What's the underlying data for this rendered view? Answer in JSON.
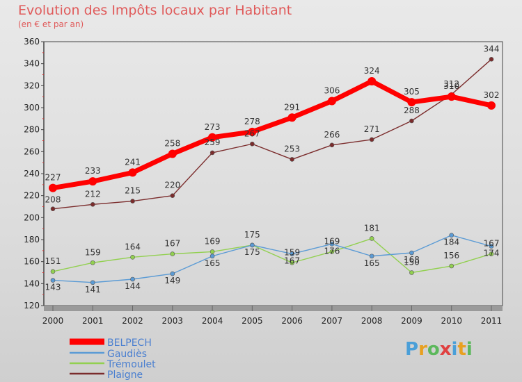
{
  "chart_data": {
    "type": "line",
    "title": "Evolution des Impôts locaux par Habitant",
    "subtitle": "(en € et par an)",
    "x": [
      "2000",
      "2001",
      "2002",
      "2003",
      "2004",
      "2005",
      "2006",
      "2007",
      "2008",
      "2009",
      "2010",
      "2011"
    ],
    "ylim": [
      120,
      360
    ],
    "yticks": [
      120,
      140,
      160,
      180,
      200,
      220,
      240,
      260,
      280,
      300,
      320,
      340,
      360
    ],
    "grid": false,
    "legend_position": "bottom-left",
    "series": [
      {
        "name": "BELPECH",
        "color": "#ff0000",
        "values": [
          227,
          233,
          241,
          258,
          273,
          278,
          291,
          306,
          324,
          305,
          310,
          302
        ]
      },
      {
        "name": "Gaudiès",
        "color": "#5b9bd5",
        "values": [
          143,
          141,
          144,
          149,
          165,
          175,
          167,
          176,
          165,
          168,
          184,
          174
        ]
      },
      {
        "name": "Trémoulet",
        "color": "#92d050",
        "values": [
          151,
          159,
          164,
          167,
          169,
          175,
          159,
          169,
          181,
          150,
          156,
          167
        ]
      },
      {
        "name": "Plaigne",
        "color": "#7b2c2c",
        "values": [
          208,
          212,
          215,
          220,
          259,
          267,
          253,
          266,
          271,
          288,
          312,
          344
        ]
      }
    ]
  },
  "logo": {
    "text": "Proxiti",
    "colors": [
      "#4a9fd8",
      "#e8a020",
      "#5cb85c",
      "#e04040",
      "#4a9fd8",
      "#e8a020",
      "#5cb85c"
    ]
  }
}
